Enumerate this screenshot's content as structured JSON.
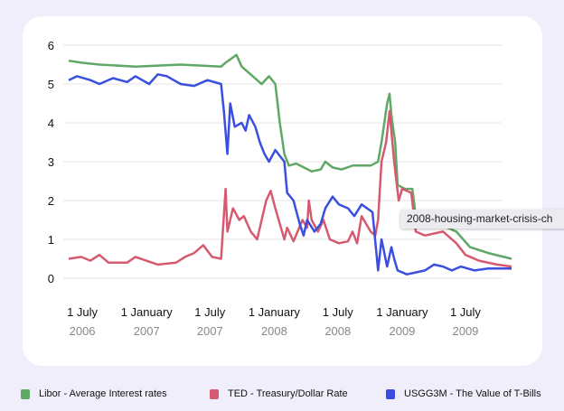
{
  "chart_data": {
    "type": "line",
    "title": "",
    "xlabel": "",
    "ylabel": "",
    "ylim": [
      0,
      6
    ],
    "yticks": [
      "0",
      "1",
      "2",
      "3",
      "4",
      "5",
      "6"
    ],
    "xlim": [
      "2006-05-23",
      "2009-11-10"
    ],
    "xticks": [
      {
        "date": "2006-07-01",
        "line1": "1 July",
        "line2": "2006"
      },
      {
        "date": "2007-01-01",
        "line1": "1 January",
        "line2": "2007"
      },
      {
        "date": "2007-07-01",
        "line1": "1 July",
        "line2": "2007"
      },
      {
        "date": "2008-01-01",
        "line1": "1 January",
        "line2": "2008"
      },
      {
        "date": "2008-07-01",
        "line1": "1 July",
        "line2": "2008"
      },
      {
        "date": "2009-01-01",
        "line1": "1 January",
        "line2": "2009"
      },
      {
        "date": "2009-07-01",
        "line1": "1 July",
        "line2": "2009"
      }
    ],
    "grid": true,
    "legend_position": "bottom",
    "tooltip": "2008-housing-market-crisis-ch",
    "series": [
      {
        "name": "Libor - Average Interest rates",
        "color": "#5fa865",
        "points": [
          [
            "2006-05-23",
            5.6
          ],
          [
            "2006-06-28",
            5.55
          ],
          [
            "2006-08-19",
            5.5
          ],
          [
            "2006-11-30",
            5.45
          ],
          [
            "2007-04-08",
            5.5
          ],
          [
            "2007-08-02",
            5.45
          ],
          [
            "2007-08-15",
            5.55
          ],
          [
            "2007-09-15",
            5.75
          ],
          [
            "2007-09-30",
            5.45
          ],
          [
            "2007-11-13",
            5.1
          ],
          [
            "2007-11-26",
            5.0
          ],
          [
            "2007-12-17",
            5.2
          ],
          [
            "2008-01-04",
            5.0
          ],
          [
            "2008-01-17",
            4.0
          ],
          [
            "2008-01-30",
            3.2
          ],
          [
            "2008-02-12",
            2.9
          ],
          [
            "2008-03-04",
            2.95
          ],
          [
            "2008-04-17",
            2.75
          ],
          [
            "2008-05-13",
            2.8
          ],
          [
            "2008-05-26",
            3.0
          ],
          [
            "2008-06-16",
            2.85
          ],
          [
            "2008-07-12",
            2.8
          ],
          [
            "2008-08-12",
            2.9
          ],
          [
            "2008-10-03",
            2.9
          ],
          [
            "2008-10-24",
            3.0
          ],
          [
            "2008-11-03",
            3.5
          ],
          [
            "2008-11-19",
            4.5
          ],
          [
            "2008-11-26",
            4.75
          ],
          [
            "2008-12-01",
            4.2
          ],
          [
            "2008-12-12",
            3.5
          ],
          [
            "2008-12-19",
            2.4
          ],
          [
            "2009-01-09",
            2.3
          ],
          [
            "2009-01-30",
            2.3
          ],
          [
            "2009-02-09",
            1.6
          ],
          [
            "2009-03-07",
            1.4
          ],
          [
            "2009-04-28",
            1.35
          ],
          [
            "2009-06-05",
            1.2
          ],
          [
            "2009-07-14",
            0.8
          ],
          [
            "2009-09-04",
            0.65
          ],
          [
            "2009-11-10",
            0.5
          ]
        ]
      },
      {
        "name": "TED - Treasury/Dollar Rate",
        "color": "#d65a6f",
        "points": [
          [
            "2006-05-23",
            0.5
          ],
          [
            "2006-06-28",
            0.55
          ],
          [
            "2006-07-24",
            0.45
          ],
          [
            "2006-08-19",
            0.6
          ],
          [
            "2006-09-14",
            0.4
          ],
          [
            "2006-11-06",
            0.4
          ],
          [
            "2006-11-30",
            0.55
          ],
          [
            "2007-02-02",
            0.35
          ],
          [
            "2007-03-26",
            0.4
          ],
          [
            "2007-04-21",
            0.55
          ],
          [
            "2007-05-17",
            0.65
          ],
          [
            "2007-06-12",
            0.85
          ],
          [
            "2007-07-07",
            0.55
          ],
          [
            "2007-08-02",
            0.5
          ],
          [
            "2007-08-15",
            2.3
          ],
          [
            "2007-08-20",
            1.2
          ],
          [
            "2007-09-05",
            1.8
          ],
          [
            "2007-09-23",
            1.5
          ],
          [
            "2007-10-06",
            1.6
          ],
          [
            "2007-10-26",
            1.2
          ],
          [
            "2007-11-13",
            1.0
          ],
          [
            "2007-12-09",
            2.0
          ],
          [
            "2007-12-22",
            2.25
          ],
          [
            "2008-01-04",
            1.8
          ],
          [
            "2008-01-30",
            1.0
          ],
          [
            "2008-02-07",
            1.3
          ],
          [
            "2008-02-25",
            0.95
          ],
          [
            "2008-03-22",
            1.5
          ],
          [
            "2008-04-04",
            1.3
          ],
          [
            "2008-04-09",
            2.0
          ],
          [
            "2008-04-17",
            1.5
          ],
          [
            "2008-05-05",
            1.2
          ],
          [
            "2008-05-21",
            1.5
          ],
          [
            "2008-06-08",
            1.0
          ],
          [
            "2008-07-04",
            0.9
          ],
          [
            "2008-07-30",
            0.95
          ],
          [
            "2008-08-12",
            1.2
          ],
          [
            "2008-08-25",
            0.9
          ],
          [
            "2008-09-07",
            1.6
          ],
          [
            "2008-10-03",
            1.2
          ],
          [
            "2008-10-16",
            1.1
          ],
          [
            "2008-10-24",
            1.5
          ],
          [
            "2008-11-03",
            3.0
          ],
          [
            "2008-11-16",
            3.5
          ],
          [
            "2008-11-26",
            4.3
          ],
          [
            "2008-12-09",
            3.0
          ],
          [
            "2008-12-22",
            2.0
          ],
          [
            "2009-01-01",
            2.3
          ],
          [
            "2009-01-27",
            2.2
          ],
          [
            "2009-02-09",
            1.2
          ],
          [
            "2009-03-07",
            1.1
          ],
          [
            "2009-04-28",
            1.2
          ],
          [
            "2009-06-05",
            0.9
          ],
          [
            "2009-07-01",
            0.6
          ],
          [
            "2009-08-09",
            0.45
          ],
          [
            "2009-09-29",
            0.35
          ],
          [
            "2009-11-10",
            0.3
          ]
        ]
      },
      {
        "name": "USGG3M - The Value of T-Bills",
        "color": "#3a4fe0",
        "points": [
          [
            "2006-05-23",
            5.1
          ],
          [
            "2006-06-16",
            5.2
          ],
          [
            "2006-07-24",
            5.1
          ],
          [
            "2006-08-19",
            5.0
          ],
          [
            "2006-09-27",
            5.15
          ],
          [
            "2006-11-06",
            5.05
          ],
          [
            "2006-11-30",
            5.2
          ],
          [
            "2007-01-08",
            5.0
          ],
          [
            "2007-02-02",
            5.25
          ],
          [
            "2007-02-28",
            5.2
          ],
          [
            "2007-04-08",
            5.0
          ],
          [
            "2007-05-17",
            4.95
          ],
          [
            "2007-06-24",
            5.1
          ],
          [
            "2007-08-02",
            5.0
          ],
          [
            "2007-08-10",
            4.3
          ],
          [
            "2007-08-20",
            3.2
          ],
          [
            "2007-08-28",
            4.5
          ],
          [
            "2007-09-10",
            3.9
          ],
          [
            "2007-09-30",
            4.0
          ],
          [
            "2007-10-11",
            3.8
          ],
          [
            "2007-10-21",
            4.2
          ],
          [
            "2007-11-08",
            3.9
          ],
          [
            "2007-11-21",
            3.5
          ],
          [
            "2007-12-04",
            3.2
          ],
          [
            "2007-12-17",
            3.0
          ],
          [
            "2008-01-04",
            3.3
          ],
          [
            "2008-01-30",
            3.0
          ],
          [
            "2008-02-07",
            2.2
          ],
          [
            "2008-02-25",
            2.0
          ],
          [
            "2008-03-14",
            1.4
          ],
          [
            "2008-03-25",
            1.1
          ],
          [
            "2008-04-04",
            1.5
          ],
          [
            "2008-04-25",
            1.2
          ],
          [
            "2008-05-13",
            1.4
          ],
          [
            "2008-05-26",
            1.8
          ],
          [
            "2008-06-16",
            2.1
          ],
          [
            "2008-07-04",
            1.9
          ],
          [
            "2008-07-30",
            1.8
          ],
          [
            "2008-08-17",
            1.6
          ],
          [
            "2008-09-07",
            1.9
          ],
          [
            "2008-10-08",
            1.7
          ],
          [
            "2008-10-24",
            0.2
          ],
          [
            "2008-11-03",
            1.0
          ],
          [
            "2008-11-19",
            0.3
          ],
          [
            "2008-12-01",
            0.8
          ],
          [
            "2008-12-09",
            0.5
          ],
          [
            "2008-12-19",
            0.2
          ],
          [
            "2009-01-14",
            0.1
          ],
          [
            "2009-02-09",
            0.15
          ],
          [
            "2009-03-07",
            0.2
          ],
          [
            "2009-04-02",
            0.35
          ],
          [
            "2009-04-28",
            0.3
          ],
          [
            "2009-05-23",
            0.2
          ],
          [
            "2009-06-18",
            0.3
          ],
          [
            "2009-07-27",
            0.2
          ],
          [
            "2009-09-04",
            0.25
          ],
          [
            "2009-11-10",
            0.25
          ]
        ]
      }
    ]
  }
}
